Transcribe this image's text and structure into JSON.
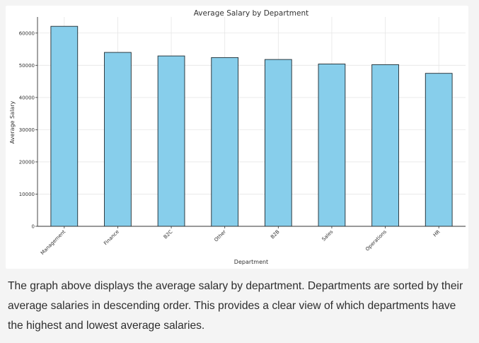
{
  "chart_data": {
    "type": "bar",
    "title": "Average Salary by Department",
    "xlabel": "Department",
    "ylabel": "Average Salary",
    "categories": [
      "Management",
      "Finance",
      "B2C",
      "Other",
      "B2B",
      "Sales",
      "Operations",
      "HR"
    ],
    "values": [
      62100,
      54000,
      52900,
      52400,
      51800,
      50400,
      50200,
      47500
    ],
    "ylim": [
      0,
      65000
    ],
    "yticks": [
      0,
      10000,
      20000,
      30000,
      40000,
      50000,
      60000
    ],
    "grid": true,
    "colors": {
      "bar_fill": "#87ceeb",
      "bar_edge": "#1f2a30",
      "grid": "#e6e6e6",
      "axis": "#333333",
      "text": "#333333"
    }
  },
  "message": {
    "text": "The graph above displays the average salary by department. Departments are sorted by their average salaries in descending order. This provides a clear view of which departments have the highest and lowest average salaries."
  }
}
